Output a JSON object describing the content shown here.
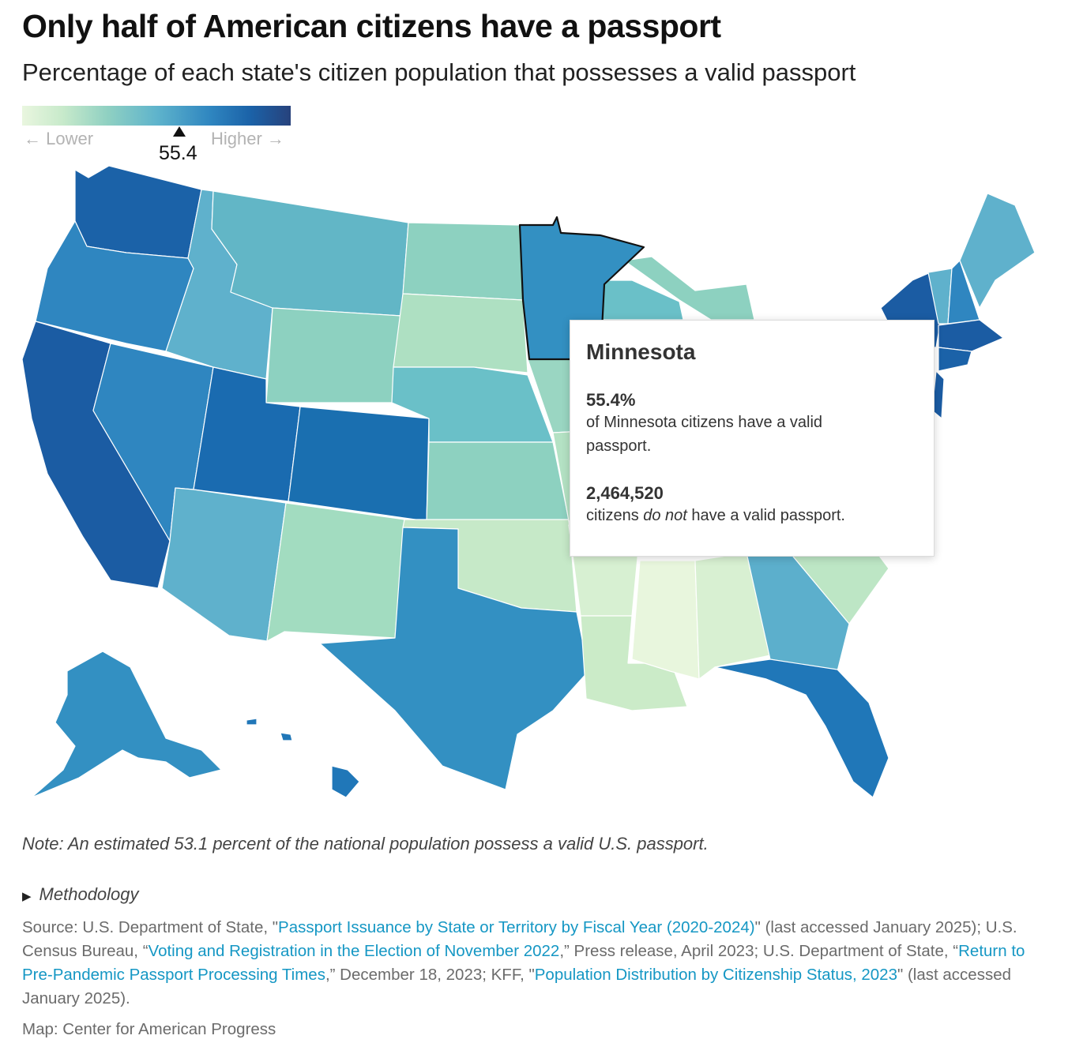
{
  "title": "Only half of American citizens have a passport",
  "subtitle": "Percentage of each state's citizen population that possesses a valid passport",
  "legend": {
    "low_label": "← Lower",
    "high_label": "Higher →",
    "marker_value": "55.4",
    "colors": [
      "#e9f6df",
      "#c8eacb",
      "#8fd0c2",
      "#5fb4cc",
      "#2f86c0",
      "#1b62a8",
      "#27427c"
    ]
  },
  "tooltip": {
    "state": "Minnesota",
    "percent": "55.4%",
    "percent_text_1": "of Minnesota citizens have a valid",
    "percent_text_2": "passport.",
    "count": "2,464,520",
    "count_text_pre": "citizens ",
    "count_text_em": "do not",
    "count_text_post": " have a valid passport."
  },
  "states": [
    {
      "id": "WA",
      "name": "Washington",
      "color": "#1b62a8"
    },
    {
      "id": "OR",
      "name": "Oregon",
      "color": "#2f86c0"
    },
    {
      "id": "CA",
      "name": "California",
      "color": "#1b5ca3"
    },
    {
      "id": "NV",
      "name": "Nevada",
      "color": "#2f86c0"
    },
    {
      "id": "ID",
      "name": "Idaho",
      "color": "#5fb1cc"
    },
    {
      "id": "MT",
      "name": "Montana",
      "color": "#62b6c6"
    },
    {
      "id": "WY",
      "name": "Wyoming",
      "color": "#8dd1c0"
    },
    {
      "id": "UT",
      "name": "Utah",
      "color": "#1a6bb0"
    },
    {
      "id": "CO",
      "name": "Colorado",
      "color": "#1a6fb0"
    },
    {
      "id": "AZ",
      "name": "Arizona",
      "color": "#5fb1cc"
    },
    {
      "id": "NM",
      "name": "New Mexico",
      "color": "#a2dcc0"
    },
    {
      "id": "ND",
      "name": "North Dakota",
      "color": "#8dd1c0"
    },
    {
      "id": "SD",
      "name": "South Dakota",
      "color": "#aee0c2"
    },
    {
      "id": "NE",
      "name": "Nebraska",
      "color": "#6ac0c8"
    },
    {
      "id": "KS",
      "name": "Kansas",
      "color": "#8dd1c0"
    },
    {
      "id": "OK",
      "name": "Oklahoma",
      "color": "#c6e9c8"
    },
    {
      "id": "TX",
      "name": "Texas",
      "color": "#3390c2"
    },
    {
      "id": "MN",
      "name": "Minnesota",
      "color": "#3390c2"
    },
    {
      "id": "IA",
      "name": "Iowa",
      "color": "#9ad6c2"
    },
    {
      "id": "MO",
      "name": "Missouri",
      "color": "#b4e2c4"
    },
    {
      "id": "AR",
      "name": "Arkansas",
      "color": "#d7f0d2"
    },
    {
      "id": "LA",
      "name": "Louisiana",
      "color": "#cbebc8"
    },
    {
      "id": "MS",
      "name": "Mississippi",
      "color": "#e8f6dd"
    },
    {
      "id": "AL",
      "name": "Alabama",
      "color": "#d8f0d2"
    },
    {
      "id": "GA",
      "name": "Georgia",
      "color": "#5cafcc"
    },
    {
      "id": "FL",
      "name": "Florida",
      "color": "#2077b8"
    },
    {
      "id": "SC",
      "name": "South Carolina",
      "color": "#bde6c5"
    },
    {
      "id": "WI",
      "name": "Wisconsin",
      "color": "#6ac0c8"
    },
    {
      "id": "MI",
      "name": "Michigan",
      "color": "#8dd1c0"
    },
    {
      "id": "NY",
      "name": "New York",
      "color": "#1b5ca3"
    },
    {
      "id": "VT",
      "name": "Vermont",
      "color": "#5fb1cc"
    },
    {
      "id": "NH",
      "name": "New Hampshire",
      "color": "#2f86c0"
    },
    {
      "id": "ME",
      "name": "Maine",
      "color": "#5fb1cc"
    },
    {
      "id": "MA",
      "name": "Massachusetts",
      "color": "#1b5ca3"
    },
    {
      "id": "CT",
      "name": "Connecticut",
      "color": "#1b62a8"
    },
    {
      "id": "NJ",
      "name": "New Jersey",
      "color": "#1b5ca3"
    },
    {
      "id": "AK",
      "name": "Alaska",
      "color": "#3390c2"
    },
    {
      "id": "HI",
      "name": "Hawaii",
      "color": "#2077b8"
    }
  ],
  "selected_state": "MN",
  "note": "Note: An estimated 53.1 percent of the national population possess a valid U.S. passport.",
  "methodology_label": "Methodology",
  "source": {
    "prefix": "Source: U.S. Department of State, \"",
    "link1": "Passport Issuance by State or Territory by Fiscal Year (2020-2024)",
    "text1": "\" (last accessed January 2025); U.S. Census Bureau, “",
    "link2": "Voting and Registration in the Election of November 2022",
    "text2": ",” Press release, April 2023; U.S. Department of State, “",
    "link3": "Return to Pre-Pandemic Passport Processing Times",
    "text3": ",” December 18, 2023; KFF, \"",
    "link4": "Population Distribution by Citizenship Status, 2023",
    "text4": "\" (last accessed January 2025)."
  },
  "credit": "Map: Center for American Progress"
}
